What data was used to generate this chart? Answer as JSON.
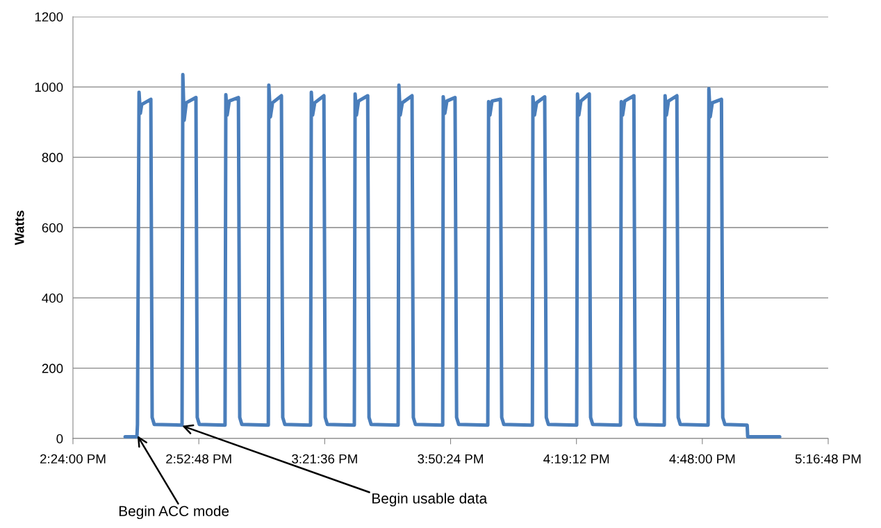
{
  "chart_data": {
    "type": "line",
    "ylabel": "Watts",
    "xlim": [
      14.4,
      17.28
    ],
    "xticks": [
      {
        "value": 14.4,
        "label": "2:24:00 PM"
      },
      {
        "value": 14.88,
        "label": "2:52:48 PM"
      },
      {
        "value": 15.36,
        "label": "3:21:36 PM"
      },
      {
        "value": 15.84,
        "label": "3:50:24 PM"
      },
      {
        "value": 16.32,
        "label": "4:19:12 PM"
      },
      {
        "value": 16.8,
        "label": "4:48:00 PM"
      },
      {
        "value": 17.28,
        "label": "5:16:48 PM"
      }
    ],
    "ylim": [
      0,
      1200
    ],
    "yticks": [
      0,
      200,
      400,
      600,
      800,
      1000,
      1200
    ],
    "grid": "y",
    "line_style": "solid",
    "marker": "none",
    "annotations": [
      {
        "text": "Begin ACC mode",
        "x": 14.646,
        "y": 8
      },
      {
        "text": "Begin usable data",
        "x": 14.816,
        "y": 36
      }
    ],
    "series": [
      {
        "color": "#4a7ebb",
        "x": [
          14.599,
          14.644,
          14.646,
          14.652,
          14.657,
          14.662,
          14.697,
          14.702,
          14.71,
          14.816,
          14.819,
          14.824,
          14.832,
          14.869,
          14.874,
          14.882,
          14.98,
          14.983,
          14.988,
          14.996,
          15.031,
          15.036,
          15.044,
          15.145,
          15.147,
          15.153,
          15.161,
          15.195,
          15.2,
          15.208,
          15.306,
          15.309,
          15.314,
          15.322,
          15.357,
          15.362,
          15.37,
          15.473,
          15.476,
          15.481,
          15.489,
          15.524,
          15.529,
          15.537,
          15.64,
          15.643,
          15.648,
          15.656,
          15.693,
          15.698,
          15.706,
          15.81,
          15.812,
          15.818,
          15.826,
          15.857,
          15.863,
          15.871,
          15.982,
          15.985,
          15.99,
          15.998,
          16.03,
          16.035,
          16.043,
          16.152,
          16.154,
          16.16,
          16.168,
          16.199,
          16.205,
          16.213,
          16.321,
          16.324,
          16.329,
          16.337,
          16.369,
          16.374,
          16.382,
          16.488,
          16.491,
          16.496,
          16.504,
          16.539,
          16.544,
          16.552,
          16.655,
          16.658,
          16.663,
          16.671,
          16.703,
          16.708,
          16.716,
          16.822,
          16.825,
          16.83,
          16.838,
          16.873,
          16.878,
          16.886,
          16.971,
          16.973,
          17.095
        ],
        "values": [
          5,
          5,
          40,
          985,
          925,
          950,
          965,
          60,
          40,
          38,
          1035,
          905,
          955,
          970,
          60,
          40,
          38,
          978,
          920,
          960,
          970,
          60,
          40,
          38,
          1005,
          915,
          955,
          975,
          60,
          40,
          38,
          985,
          920,
          955,
          975,
          60,
          40,
          38,
          980,
          920,
          960,
          975,
          60,
          40,
          38,
          1005,
          920,
          955,
          975,
          60,
          40,
          38,
          972,
          925,
          960,
          970,
          60,
          40,
          38,
          958,
          920,
          960,
          965,
          60,
          40,
          38,
          972,
          920,
          955,
          972,
          60,
          40,
          38,
          980,
          920,
          960,
          980,
          60,
          40,
          38,
          958,
          920,
          960,
          975,
          60,
          40,
          38,
          975,
          920,
          960,
          975,
          60,
          40,
          38,
          995,
          915,
          955,
          965,
          60,
          40,
          38,
          5,
          5
        ]
      }
    ]
  }
}
